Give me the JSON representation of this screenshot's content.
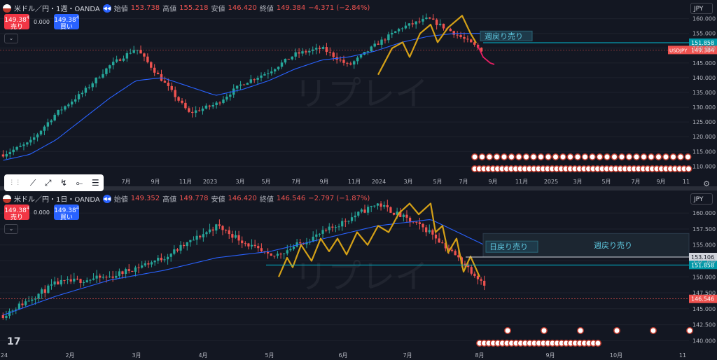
{
  "top": {
    "symbol": "米ドル／円・1週・OANDA",
    "ohlc": {
      "open_label": "始値",
      "open": "153.738",
      "high_label": "高値",
      "high": "155.218",
      "low_label": "安値",
      "low": "146.420",
      "close_label": "終値",
      "close": "149.384",
      "change": "−4.371 (−2.84%)"
    },
    "sell": {
      "price": "149.38",
      "sup": "4",
      "label": "売り"
    },
    "buy": {
      "price": "149.38",
      "sup": "4",
      "label": "買い"
    },
    "spread": "0.000",
    "currency": "JPY",
    "annotation": "週戻り売り",
    "level_label": "151.858",
    "price_badge": "USDJPY",
    "price_value": "149.384"
  },
  "bottom": {
    "symbol": "米ドル／円・1日・OANDA",
    "ohlc": {
      "open_label": "始値",
      "open": "149.352",
      "high_label": "高値",
      "high": "149.778",
      "low_label": "安値",
      "low": "146.420",
      "close_label": "終値",
      "close": "146.546",
      "change": "−2.797 (−1.87%)"
    },
    "sell": {
      "price": "149.38",
      "sup": "4",
      "label": "売り"
    },
    "buy": {
      "price": "149.38",
      "sup": "4",
      "label": "買い"
    },
    "spread": "0.000",
    "currency": "JPY",
    "annotation_daily": "日戻り売り",
    "annotation_weekly": "週戻り売り",
    "level1_label": "153.106",
    "level2_label": "151.858",
    "price_value": "146.546"
  },
  "watermark": "リプレイ",
  "colors": {
    "bg": "#131722",
    "up": "#26a69a",
    "down": "#ef5350",
    "ma": "#2962ff",
    "wave": "#d4a017",
    "level": "#00bcd4",
    "pink": "#e91e63"
  },
  "chart_data": [
    {
      "type": "candlestick",
      "title": "米ドル／円・1週・OANDA",
      "y_ticks": [
        160,
        155,
        150,
        145,
        140,
        135,
        130,
        125,
        120,
        115,
        110
      ],
      "ylim": [
        107,
        163
      ],
      "x_ticks": [
        "7月",
        "9月",
        "11月",
        "2023",
        "3月",
        "5月",
        "7月",
        "9月",
        "11月",
        "2024",
        "3月",
        "5月",
        "7月",
        "9月",
        "11月",
        "2025",
        "3月",
        "5月",
        "7月",
        "9月",
        "11"
      ],
      "series": [
        {
          "name": "close",
          "x": [
            "2022-01",
            "2022-03",
            "2022-05",
            "2022-07",
            "2022-09",
            "2022-10",
            "2022-11",
            "2023-01",
            "2023-03",
            "2023-05",
            "2023-07",
            "2023-09",
            "2023-11",
            "2024-01",
            "2024-03",
            "2024-05",
            "2024-06",
            "2024-07",
            "2024-08"
          ],
          "values": [
            114,
            118,
            128,
            135,
            144,
            150,
            139,
            128,
            131,
            138,
            142,
            148,
            150,
            144,
            151,
            157,
            160,
            155,
            149.4
          ]
        },
        {
          "name": "ma",
          "values": [
            112,
            114,
            119,
            126,
            133,
            139,
            140,
            137,
            134,
            136,
            139,
            143,
            146,
            147,
            149,
            152,
            154,
            155,
            155
          ]
        }
      ],
      "levels": [
        151.858,
        149.384
      ],
      "annotations": [
        "週戻り売り"
      ]
    },
    {
      "type": "candlestick",
      "title": "米ドル／円・1日・OANDA",
      "y_ticks": [
        160,
        157.5,
        155,
        152.5,
        150,
        147.5,
        145,
        142.5,
        140
      ],
      "ylim": [
        138.5,
        162
      ],
      "x_ticks": [
        "24",
        "2月",
        "3月",
        "4月",
        "5月",
        "6月",
        "7月",
        "8月",
        "9月",
        "10月",
        "11"
      ],
      "series": [
        {
          "name": "close",
          "x": [
            "2024-01",
            "2024-02",
            "2024-03",
            "2024-04",
            "2024-04-29",
            "2024-05",
            "2024-06",
            "2024-07-03",
            "2024-07-15",
            "2024-08-01"
          ],
          "values": [
            144,
            149,
            150,
            153,
            158,
            153,
            157,
            161.5,
            157,
            149
          ]
        },
        {
          "name": "ma",
          "values": [
            144,
            147,
            149.5,
            151,
            153,
            154,
            156,
            158,
            159,
            155
          ]
        }
      ],
      "levels": [
        153.106,
        151.858,
        146.546
      ],
      "annotations": [
        "日戻り売り",
        "週戻り売り"
      ]
    }
  ]
}
